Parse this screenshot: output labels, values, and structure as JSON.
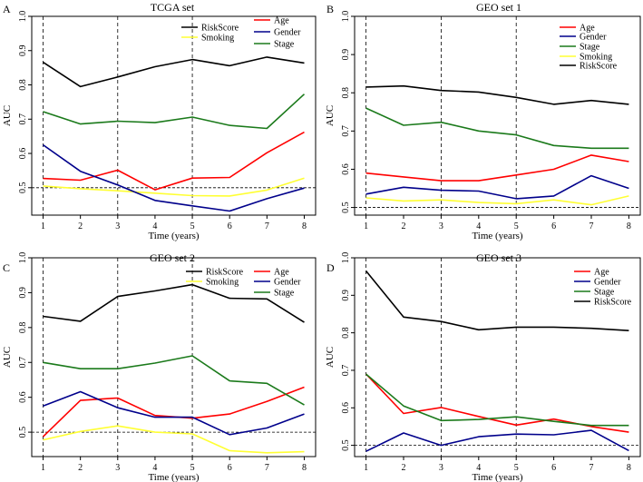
{
  "chart_data": [
    {
      "type": "line",
      "letter": "A",
      "title": "TCGA set",
      "xlabel": "Time (years)",
      "ylabel": "AUC",
      "x": [
        1,
        2,
        3,
        4,
        5,
        6,
        7,
        8
      ],
      "xlim": [
        1,
        8
      ],
      "ylim": [
        0.42,
        1.0
      ],
      "yticks": [
        "0.5",
        "0.6",
        "0.7",
        "0.8",
        "0.9",
        "1.0"
      ],
      "xticks": [
        "1",
        "2",
        "3",
        "4",
        "5",
        "6",
        "7",
        "8"
      ],
      "reference_line": 0.5,
      "time_markers": [
        1,
        3,
        5
      ],
      "series": [
        {
          "name": "RiskScore",
          "color": "#000000",
          "values": [
            0.866,
            0.795,
            0.823,
            0.853,
            0.874,
            0.856,
            0.881,
            0.864
          ]
        },
        {
          "name": "Smoking",
          "color": "#ffff33",
          "values": [
            0.505,
            0.497,
            0.491,
            0.484,
            0.477,
            0.476,
            0.493,
            0.528
          ]
        },
        {
          "name": "Age",
          "color": "#ff0000",
          "values": [
            0.527,
            0.522,
            0.551,
            0.494,
            0.528,
            0.53,
            0.602,
            0.662
          ]
        },
        {
          "name": "Gender",
          "color": "#00008b",
          "values": [
            0.625,
            0.548,
            0.508,
            0.463,
            0.447,
            0.432,
            0.468,
            0.499
          ]
        },
        {
          "name": "Stage",
          "color": "#1b7a1b",
          "values": [
            0.722,
            0.686,
            0.694,
            0.69,
            0.706,
            0.682,
            0.673,
            0.773
          ]
        }
      ]
    },
    {
      "type": "line",
      "letter": "B",
      "title": "GEO set 1",
      "xlabel": "Time (years)",
      "ylabel": "AUC",
      "x": [
        1,
        2,
        3,
        4,
        5,
        6,
        7,
        8
      ],
      "xlim": [
        1,
        8
      ],
      "ylim": [
        0.48,
        1.0
      ],
      "yticks": [
        "0.5",
        "0.6",
        "0.7",
        "0.8",
        "0.9",
        "1.0"
      ],
      "xticks": [
        "1",
        "2",
        "3",
        "4",
        "5",
        "6",
        "7",
        "8"
      ],
      "reference_line": 0.5,
      "time_markers": [
        1,
        3,
        5
      ],
      "series": [
        {
          "name": "Age",
          "color": "#ff0000",
          "values": [
            0.59,
            0.58,
            0.57,
            0.57,
            0.585,
            0.6,
            0.637,
            0.62
          ]
        },
        {
          "name": "Gender",
          "color": "#00008b",
          "values": [
            0.535,
            0.553,
            0.545,
            0.543,
            0.523,
            0.53,
            0.583,
            0.55
          ]
        },
        {
          "name": "Stage",
          "color": "#1b7a1b",
          "values": [
            0.76,
            0.715,
            0.723,
            0.7,
            0.69,
            0.662,
            0.655,
            0.655
          ]
        },
        {
          "name": "Smoking",
          "color": "#ffff33",
          "values": [
            0.525,
            0.517,
            0.52,
            0.513,
            0.51,
            0.52,
            0.507,
            0.53
          ]
        },
        {
          "name": "RiskScore",
          "color": "#000000",
          "values": [
            0.815,
            0.818,
            0.806,
            0.802,
            0.788,
            0.77,
            0.78,
            0.77
          ]
        }
      ]
    },
    {
      "type": "line",
      "letter": "C",
      "title": "GEO set 2",
      "xlabel": "Time (years)",
      "ylabel": "AUC",
      "x": [
        1,
        2,
        3,
        4,
        5,
        6,
        7,
        8
      ],
      "xlim": [
        1,
        8
      ],
      "ylim": [
        0.43,
        1.0
      ],
      "yticks": [
        "0.5",
        "0.6",
        "0.7",
        "0.8",
        "0.9",
        "1.0"
      ],
      "xticks": [
        "1",
        "2",
        "3",
        "4",
        "5",
        "6",
        "7",
        "8"
      ],
      "reference_line": 0.5,
      "time_markers": [
        1,
        3,
        5
      ],
      "series": [
        {
          "name": "RiskScore",
          "color": "#000000",
          "values": [
            0.832,
            0.818,
            0.889,
            0.905,
            0.923,
            0.884,
            0.882,
            0.815
          ]
        },
        {
          "name": "Smoking",
          "color": "#ffff33",
          "values": [
            0.478,
            0.502,
            0.518,
            0.5,
            0.495,
            0.447,
            0.441,
            0.444
          ]
        },
        {
          "name": "Age",
          "color": "#ff0000",
          "values": [
            0.487,
            0.591,
            0.598,
            0.548,
            0.54,
            0.552,
            0.588,
            0.629
          ]
        },
        {
          "name": "Gender",
          "color": "#00008b",
          "values": [
            0.575,
            0.616,
            0.57,
            0.543,
            0.543,
            0.493,
            0.512,
            0.552
          ]
        },
        {
          "name": "Stage",
          "color": "#1b7a1b",
          "values": [
            0.7,
            0.682,
            0.682,
            0.698,
            0.719,
            0.647,
            0.64,
            0.578
          ]
        }
      ]
    },
    {
      "type": "line",
      "letter": "D",
      "title": "GEO set 3",
      "xlabel": "Time (years)",
      "ylabel": "AUC",
      "x": [
        1,
        2,
        3,
        4,
        5,
        6,
        7,
        8
      ],
      "xlim": [
        1,
        8
      ],
      "ylim": [
        0.47,
        1.0
      ],
      "yticks": [
        "0.5",
        "0.6",
        "0.7",
        "0.8",
        "0.9",
        "1.0"
      ],
      "xticks": [
        "1",
        "2",
        "3",
        "4",
        "5",
        "6",
        "7",
        "8"
      ],
      "reference_line": 0.5,
      "time_markers": [
        1,
        3,
        5
      ],
      "series": [
        {
          "name": "Age",
          "color": "#ff0000",
          "values": [
            0.69,
            0.585,
            0.601,
            0.577,
            0.554,
            0.57,
            0.55,
            0.535
          ]
        },
        {
          "name": "Gender",
          "color": "#00008b",
          "values": [
            0.484,
            0.533,
            0.5,
            0.523,
            0.53,
            0.528,
            0.54,
            0.486
          ]
        },
        {
          "name": "Stage",
          "color": "#1b7a1b",
          "values": [
            0.69,
            0.605,
            0.566,
            0.569,
            0.576,
            0.564,
            0.553,
            0.553
          ]
        },
        {
          "name": "RiskScore",
          "color": "#000000",
          "values": [
            0.965,
            0.842,
            0.83,
            0.808,
            0.815,
            0.815,
            0.812,
            0.806
          ]
        }
      ]
    }
  ]
}
